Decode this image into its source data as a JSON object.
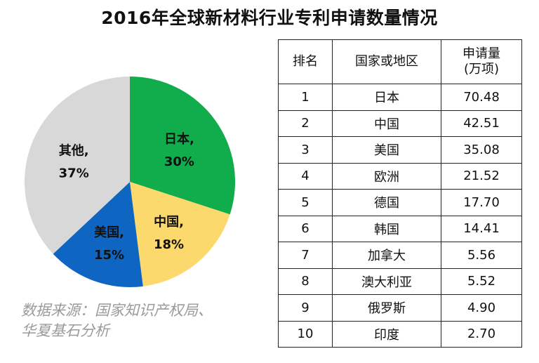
{
  "title": "2016年全球新材料行业专利申请数量情况",
  "chart_data": {
    "type": "pie",
    "slices": [
      {
        "name": "日本",
        "value": 30,
        "label": "30%",
        "color": "#11ac4c"
      },
      {
        "name": "中国",
        "value": 18,
        "label": "18%",
        "color": "#fcd96c"
      },
      {
        "name": "美国",
        "value": 15,
        "label": "15%",
        "color": "#0f65c2"
      },
      {
        "name": "其他",
        "value": 37,
        "label": "37%",
        "color": "#d8d8d8"
      }
    ]
  },
  "source": {
    "line1": "数据来源：国家知识产权局、",
    "line2": "华夏基石分析"
  },
  "table": {
    "headers": {
      "rank": "排名",
      "region": "国家或地区",
      "count_line1": "申请量",
      "count_line2": "(万项)"
    },
    "rows": [
      {
        "rank": "1",
        "region": "日本",
        "count": "70.48"
      },
      {
        "rank": "2",
        "region": "中国",
        "count": "42.51"
      },
      {
        "rank": "3",
        "region": "美国",
        "count": "35.08"
      },
      {
        "rank": "4",
        "region": "欧洲",
        "count": "21.52"
      },
      {
        "rank": "5",
        "region": "德国",
        "count": "17.70"
      },
      {
        "rank": "6",
        "region": "韩国",
        "count": "14.41"
      },
      {
        "rank": "7",
        "region": "加拿大",
        "count": "5.56"
      },
      {
        "rank": "8",
        "region": "澳大利亚",
        "count": "5.52"
      },
      {
        "rank": "9",
        "region": "俄罗斯",
        "count": "4.90"
      },
      {
        "rank": "10",
        "region": "印度",
        "count": "2.70"
      }
    ]
  }
}
